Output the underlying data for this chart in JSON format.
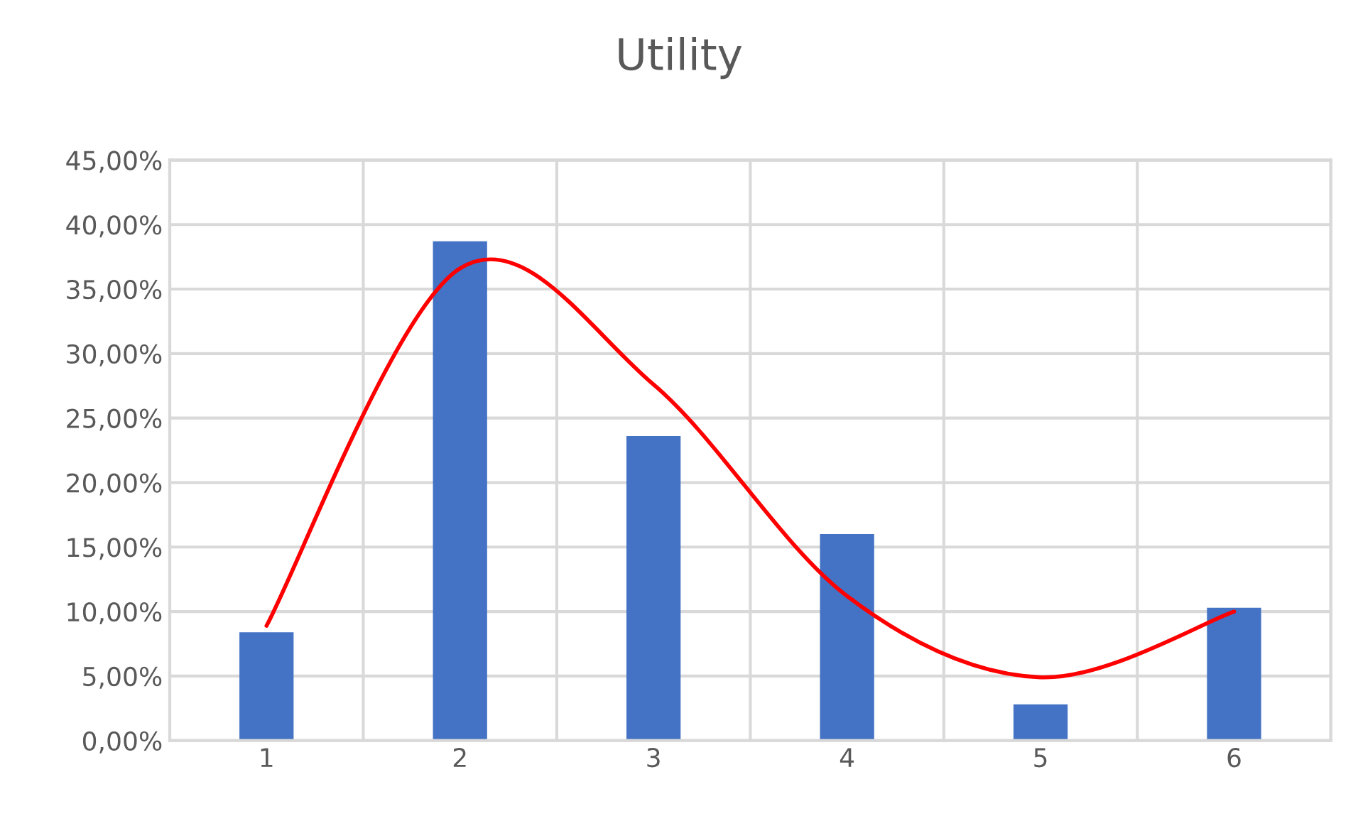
{
  "chart_data": {
    "type": "bar",
    "title": "Utility",
    "categories": [
      "1",
      "2",
      "3",
      "4",
      "5",
      "6"
    ],
    "series": [
      {
        "color": "#4472c4",
        "values": [
          8.4,
          38.7,
          23.6,
          16.0,
          2.8,
          10.3
        ]
      },
      {
        "type": "line",
        "color": "#ff0000",
        "values": [
          8.9,
          36.6,
          27.6,
          11.2,
          4.9,
          10.0
        ]
      }
    ],
    "ylim": [
      0,
      45
    ],
    "yticks": [
      {
        "value": 0,
        "label": "0,00%"
      },
      {
        "value": 5,
        "label": "5,00%"
      },
      {
        "value": 10,
        "label": "10,00%"
      },
      {
        "value": 15,
        "label": "15,00%"
      },
      {
        "value": 20,
        "label": "20,00%"
      },
      {
        "value": 25,
        "label": "25,00%"
      },
      {
        "value": 30,
        "label": "30,00%"
      },
      {
        "value": 35,
        "label": "35,00%"
      },
      {
        "value": 40,
        "label": "40,00%"
      },
      {
        "value": 45,
        "label": "45,00%"
      }
    ],
    "grid": true
  }
}
